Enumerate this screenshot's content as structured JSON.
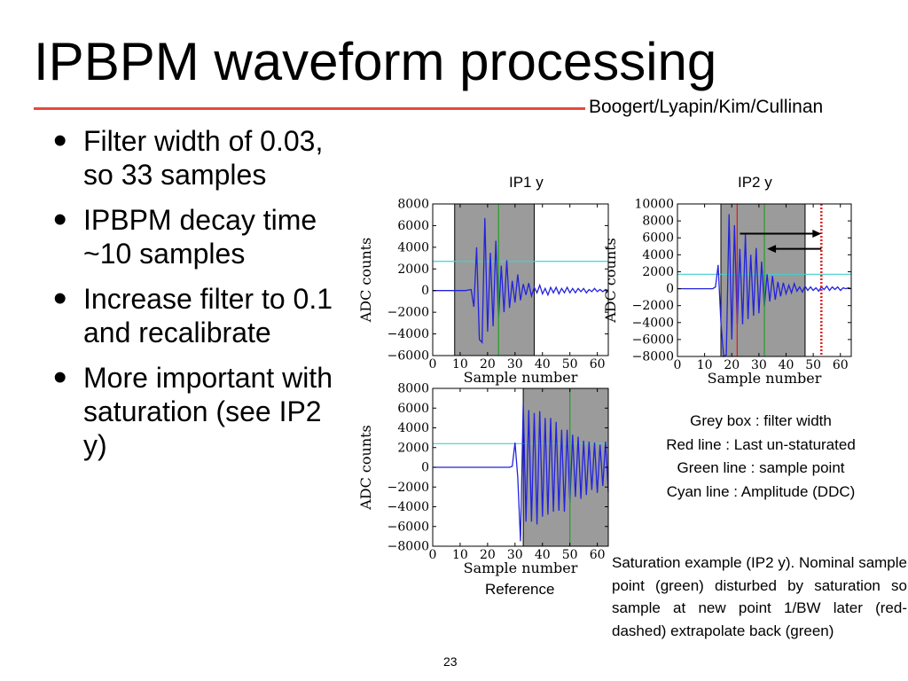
{
  "slide": {
    "title": "IPBPM waveform processing",
    "authors": "Boogert/Lyapin/Kim/Cullinan",
    "page_number": "23",
    "accent_color": "#e8483c"
  },
  "bullets": [
    "Filter width of 0.03, so 33 samples",
    "IPBPM decay time ~10 samples",
    "Increase filter to 0.1 and recalibrate",
    "More important with saturation (see IP2 y)"
  ],
  "captions": {
    "ip1": "IP1 y",
    "ip2": "IP2 y",
    "reference": "Reference"
  },
  "legend": {
    "grey": "Grey box : filter width",
    "red": "Red line : Last un-staturated",
    "green": "Green line : sample point",
    "cyan": "Cyan line : Amplitude (DDC)"
  },
  "note": "Saturation example (IP2 y). Nominal sample point (green) disturbed by saturation so sample at new point 1/BW later (red-dashed) extrapolate back (green)",
  "chart_data": [
    {
      "type": "line",
      "name": "IP1 y",
      "xlabel": "Sample number",
      "ylabel": "ADC counts",
      "xlim": [
        0,
        64
      ],
      "ylim": [
        -6000,
        8000
      ],
      "xticks": [
        0,
        10,
        20,
        30,
        40,
        50,
        60
      ],
      "yticks": [
        8000,
        6000,
        4000,
        2000,
        0,
        -2000,
        -4000,
        -6000
      ],
      "ytick_labels": [
        "8000",
        "6000",
        "4000",
        "2000",
        "0",
        "−2000",
        "−4000",
        "−6000"
      ],
      "filter_box": [
        8,
        37
      ],
      "sample_point": 24,
      "amplitude_level": 2700,
      "colors": {
        "trace": "#2222dd",
        "box": "#9b9b9b",
        "sample": "#2ca02c",
        "amplitude": "#40d0d0",
        "last_unsaturated": "#e02020"
      },
      "x": [
        0,
        8,
        12,
        14,
        15,
        16,
        17,
        18,
        19,
        20,
        21,
        22,
        23,
        24,
        25,
        26,
        27,
        28,
        29,
        30,
        31,
        32,
        33,
        34,
        35,
        36,
        37,
        38,
        39,
        40,
        41,
        42,
        43,
        44,
        45,
        46,
        47,
        48,
        49,
        50,
        51,
        52,
        53,
        54,
        55,
        56,
        57,
        58,
        59,
        60,
        61,
        62,
        63,
        64
      ],
      "y": [
        0,
        0,
        0,
        100,
        -1500,
        4000,
        -4500,
        -4800,
        6700,
        -3800,
        3500,
        -3300,
        4600,
        -2500,
        2300,
        -2000,
        2800,
        -1600,
        900,
        -1100,
        1500,
        -900,
        600,
        -400,
        700,
        -500,
        300,
        -200,
        500,
        -300,
        200,
        -400,
        300,
        -200,
        300,
        -300,
        200,
        -200,
        300,
        -200,
        200,
        -200,
        200,
        -100,
        200,
        -200,
        100,
        -100,
        200,
        -100,
        100,
        -100,
        100,
        0
      ]
    },
    {
      "type": "line",
      "name": "IP2 y",
      "xlabel": "Sample number",
      "ylabel": "ADC counts",
      "xlim": [
        0,
        64
      ],
      "ylim": [
        -8000,
        10000
      ],
      "xticks": [
        0,
        10,
        20,
        30,
        40,
        50,
        60
      ],
      "yticks": [
        10000,
        8000,
        6000,
        4000,
        2000,
        0,
        -2000,
        -4000,
        -6000,
        -8000
      ],
      "ytick_labels": [
        "10000",
        "8000",
        "6000",
        "4000",
        "2000",
        "0",
        "−2000",
        "−4000",
        "−6000",
        "−8000"
      ],
      "filter_box": [
        16,
        47
      ],
      "sample_point": 32,
      "last_unsaturated": 22,
      "extrapolated_point": 53,
      "amplitude_level": 1700,
      "arrows": [
        {
          "from": 23,
          "to": 53,
          "y": 6500
        },
        {
          "from": 53,
          "to": 33,
          "y": 4700
        }
      ],
      "colors": {
        "trace": "#2222dd",
        "box": "#9b9b9b",
        "sample": "#2ca02c",
        "amplitude": "#40d0d0",
        "last_unsaturated": "#e02020"
      },
      "x": [
        0,
        10,
        13,
        14,
        15,
        16,
        17,
        18,
        19,
        20,
        21,
        22,
        23,
        24,
        25,
        26,
        27,
        28,
        29,
        30,
        31,
        32,
        33,
        34,
        35,
        36,
        37,
        38,
        39,
        40,
        41,
        42,
        43,
        44,
        45,
        46,
        47,
        48,
        49,
        50,
        51,
        52,
        53,
        54,
        55,
        56,
        57,
        58,
        59,
        60,
        61,
        62,
        63,
        64
      ],
      "y": [
        0,
        0,
        0,
        200,
        2800,
        -4000,
        -8000,
        -7800,
        8800,
        -6000,
        7500,
        -4200,
        4700,
        -4200,
        6400,
        -3600,
        4000,
        -3200,
        4800,
        -2900,
        3200,
        -2100,
        1700,
        -1500,
        1500,
        -1300,
        800,
        -900,
        700,
        -600,
        400,
        -500,
        600,
        -300,
        200,
        -400,
        300,
        -200,
        200,
        -200,
        100,
        -300,
        200,
        -100,
        300,
        -200,
        200,
        -100,
        200,
        -200,
        100,
        0,
        100,
        0
      ]
    },
    {
      "type": "line",
      "name": "Reference",
      "xlabel": "Sample number",
      "ylabel": "ADC counts",
      "xlim": [
        0,
        64
      ],
      "ylim": [
        -8000,
        8000
      ],
      "xticks": [
        0,
        10,
        20,
        30,
        40,
        50,
        60
      ],
      "yticks": [
        8000,
        6000,
        4000,
        2000,
        0,
        -2000,
        -4000,
        -6000,
        -8000
      ],
      "ytick_labels": [
        "8000",
        "6000",
        "4000",
        "2000",
        "0",
        "−2000",
        "−4000",
        "−6000",
        "−8000"
      ],
      "filter_box": [
        33,
        64
      ],
      "sample_point": 50,
      "amplitude_level": 2400,
      "colors": {
        "trace": "#2222dd",
        "box": "#9b9b9b",
        "sample": "#2ca02c",
        "amplitude": "#40d0d0",
        "last_unsaturated": "#e02020"
      },
      "x": [
        0,
        28,
        29,
        30,
        31,
        32,
        33,
        34,
        35,
        36,
        37,
        38,
        39,
        40,
        41,
        42,
        43,
        44,
        45,
        46,
        47,
        48,
        49,
        50,
        51,
        52,
        53,
        54,
        55,
        56,
        57,
        58,
        59,
        60,
        61,
        62,
        63,
        64
      ],
      "y": [
        0,
        0,
        100,
        2500,
        -1000,
        -7500,
        6500,
        -5500,
        5800,
        -5500,
        5500,
        -5800,
        5700,
        -5000,
        5000,
        -4800,
        5000,
        -4500,
        4600,
        -4400,
        3800,
        -4500,
        3800,
        -3600,
        3300,
        -3000,
        3100,
        -3200,
        2700,
        -2800,
        2600,
        -2300,
        2500,
        -2600,
        2300,
        -1900,
        2600,
        -2500
      ]
    }
  ]
}
